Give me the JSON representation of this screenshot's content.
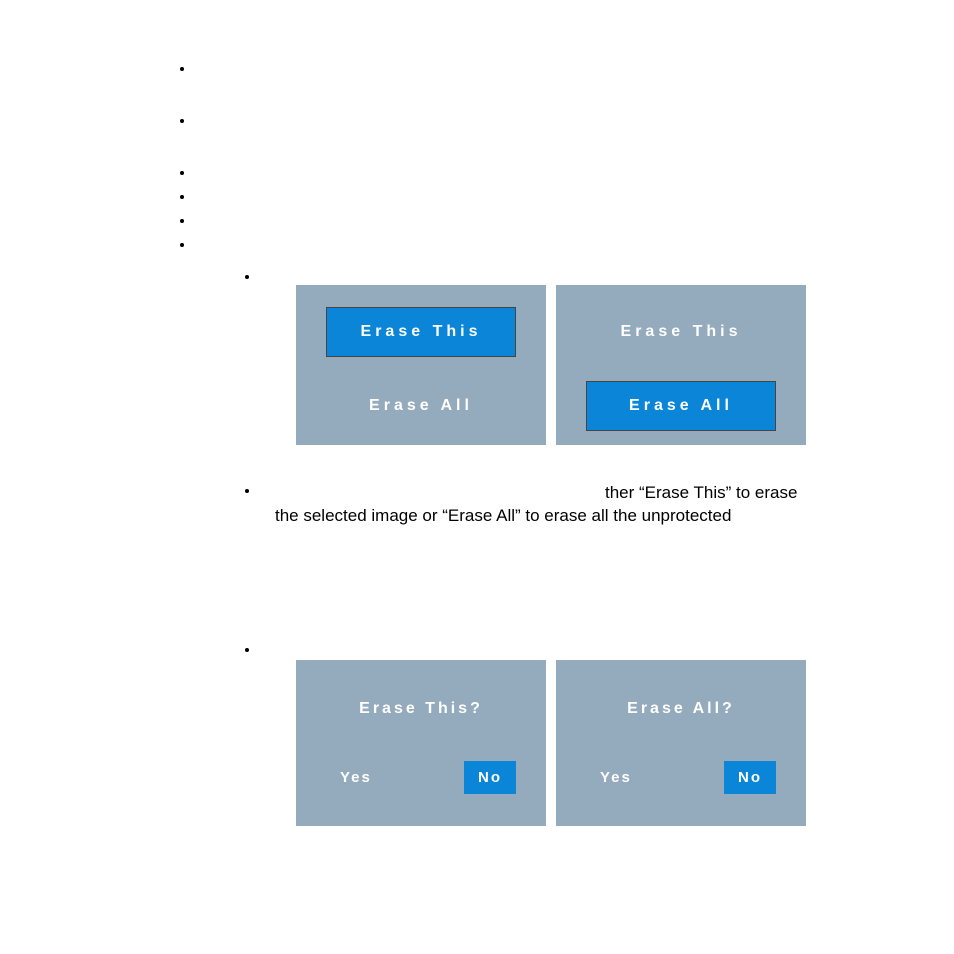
{
  "colors": {
    "dialog_background": "#94aabd",
    "selected_background": "#0a85d8",
    "text_color": "#ffffff",
    "body_text": "#000000",
    "page_background": "#ffffff"
  },
  "typography": {
    "dialog_font_size": 16,
    "dialog_letter_spacing": 4,
    "body_font_size": 17,
    "button_font_size": 15,
    "font_weight": "bold"
  },
  "dialogs": {
    "erase_menu_a": {
      "option_top": "Erase This",
      "option_bottom": "Erase  All",
      "selected": "top"
    },
    "erase_menu_b": {
      "option_top": "Erase This",
      "option_bottom": "Erase  All",
      "selected": "bottom"
    },
    "confirm_a": {
      "title": "Erase This?",
      "yes": "Yes",
      "no": "No",
      "selected": "no"
    },
    "confirm_b": {
      "title": "Erase All?",
      "yes": "Yes",
      "no": "No",
      "selected": "no"
    }
  },
  "instruction": {
    "line1": "ther “Erase This” to erase",
    "line2": "the selected image or “Erase All” to erase all the unprotected"
  }
}
